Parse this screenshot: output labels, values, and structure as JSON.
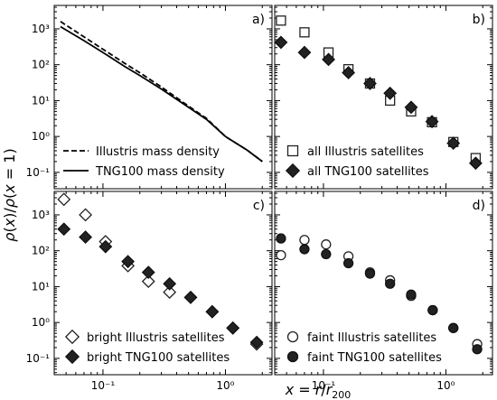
{
  "chart_data": {
    "type": "scatter",
    "xlabel": "x = r/r200",
    "ylabel": "ρ(x)/ρ(x = 1)",
    "x_scale": "log",
    "y_scale": "log",
    "xlim": [
      0.04,
      2.4
    ],
    "ylim": [
      0.035,
      4500
    ],
    "x_tick_values": [
      0.1,
      1
    ],
    "x_tick_labels": [
      "10⁻¹",
      "10⁰"
    ],
    "y_tick_values": [
      0.1,
      1,
      10,
      100,
      1000
    ],
    "y_tick_labels": [
      "10⁻¹",
      "10⁰",
      "10¹",
      "10²",
      "10³"
    ],
    "panels": [
      {
        "label": "a)",
        "legend_position": "lower-left",
        "series": [
          {
            "name": "Illustris mass density",
            "style": "dashed-line",
            "x": [
              0.045,
              0.07,
              0.1,
              0.15,
              0.2,
              0.3,
              0.5,
              0.7,
              1.0,
              1.5,
              2.0
            ],
            "y": [
              1600,
              600,
              270,
              110,
              60,
              24,
              7,
              3.2,
              1.0,
              0.42,
              0.2
            ]
          },
          {
            "name": "TNG100 mass density",
            "style": "solid-line",
            "x": [
              0.045,
              0.07,
              0.1,
              0.15,
              0.2,
              0.3,
              0.5,
              0.7,
              1.0,
              1.5,
              2.0
            ],
            "y": [
              1150,
              470,
              220,
              90,
              50,
              21,
              6.5,
              3.0,
              1.0,
              0.42,
              0.2
            ]
          }
        ]
      },
      {
        "label": "b)",
        "legend_position": "lower-left",
        "series": [
          {
            "name": "all Illustris satellites",
            "marker": "open-square",
            "x": [
              0.045,
              0.07,
              0.11,
              0.16,
              0.24,
              0.35,
              0.52,
              0.77,
              1.15,
              1.75
            ],
            "y": [
              1700,
              800,
              220,
              75,
              30,
              10,
              5,
              2.5,
              0.7,
              0.25
            ]
          },
          {
            "name": "all TNG100 satellites",
            "marker": "filled-diamond",
            "x": [
              0.045,
              0.07,
              0.11,
              0.16,
              0.24,
              0.35,
              0.52,
              0.77,
              1.15,
              1.75
            ],
            "y": [
              420,
              220,
              140,
              60,
              30,
              16,
              6.5,
              2.6,
              0.65,
              0.18
            ]
          }
        ]
      },
      {
        "label": "c)",
        "legend_position": "lower-left",
        "series": [
          {
            "name": "bright Illustris satellites",
            "marker": "open-diamond",
            "x": [
              0.048,
              0.072,
              0.105,
              0.16,
              0.235,
              0.35,
              0.52,
              0.78,
              1.15,
              1.8
            ],
            "y": [
              2700,
              1000,
              180,
              38,
              14,
              7,
              5,
              2,
              0.7,
              0.25
            ]
          },
          {
            "name": "bright TNG100 satellites",
            "marker": "filled-diamond",
            "x": [
              0.048,
              0.072,
              0.105,
              0.16,
              0.235,
              0.35,
              0.52,
              0.78,
              1.15,
              1.8
            ],
            "y": [
              400,
              240,
              130,
              50,
              25,
              12,
              5,
              2,
              0.7,
              0.28
            ]
          }
        ]
      },
      {
        "label": "d)",
        "legend_position": "lower-left",
        "series": [
          {
            "name": "faint Illustris satellites",
            "marker": "open-circle",
            "x": [
              0.045,
              0.07,
              0.105,
              0.16,
              0.24,
              0.35,
              0.52,
              0.78,
              1.15,
              1.8
            ],
            "y": [
              75,
              200,
              150,
              70,
              25,
              15,
              5.5,
              2.2,
              0.7,
              0.25
            ]
          },
          {
            "name": "faint TNG100 satellites",
            "marker": "filled-circle",
            "x": [
              0.045,
              0.07,
              0.105,
              0.16,
              0.24,
              0.35,
              0.52,
              0.78,
              1.15,
              1.8
            ],
            "y": [
              220,
              110,
              80,
              45,
              23,
              12,
              6,
              2.2,
              0.7,
              0.18
            ]
          }
        ]
      }
    ]
  }
}
